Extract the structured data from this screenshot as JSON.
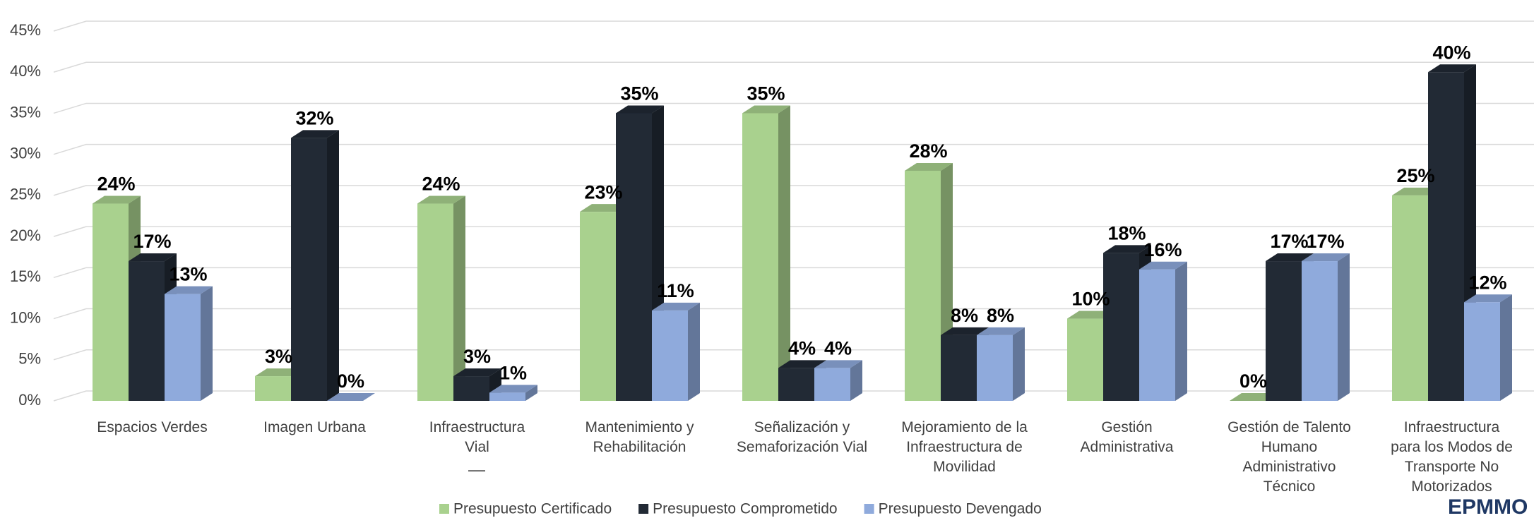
{
  "chart_data": {
    "type": "bar3d",
    "categories": [
      "Espacios Verdes",
      "Imagen Urbana",
      "Infraestructura Vial",
      "Mantenimiento y Rehabilitación",
      "Señalización y Semaforización Vial",
      "Mejoramiento de la Infraestructura de Movilidad",
      "Gestión Administrativa",
      "Gestión de Talento Humano Administrativo Técnico",
      "Infraestructura para los Modos de Transporte No Motorizados"
    ],
    "series": [
      {
        "name": "Presupuesto Certificado",
        "color": "#a9d18e",
        "values": [
          24,
          3,
          24,
          23,
          35,
          28,
          10,
          0,
          25
        ],
        "value_labels": [
          "24%",
          "3%",
          "24%",
          "23%",
          "35%",
          "28%",
          "10%",
          "0%",
          "25%"
        ]
      },
      {
        "name": "Presupuesto Comprometido",
        "color": "#222a35",
        "values": [
          17,
          32,
          3,
          35,
          4,
          8,
          18,
          17,
          40
        ],
        "value_labels": [
          "17%",
          "32%",
          "3%",
          "35%",
          "4%",
          "8%",
          "18%",
          "17%",
          "40%"
        ]
      },
      {
        "name": "Presupuesto Devengado",
        "color": "#8faadc",
        "values": [
          13,
          0,
          1,
          11,
          4,
          8,
          16,
          17,
          12
        ],
        "value_labels": [
          "13%",
          "0%",
          "1%",
          "11%",
          "4%",
          "8%",
          "16%",
          "17%",
          "12%"
        ]
      }
    ],
    "ylim": [
      0,
      45
    ],
    "yticks": [
      {
        "value": 0,
        "label": "0%"
      },
      {
        "value": 5,
        "label": "5%"
      },
      {
        "value": 10,
        "label": "10%"
      },
      {
        "value": 15,
        "label": "15%"
      },
      {
        "value": 20,
        "label": "20%"
      },
      {
        "value": 25,
        "label": "25%"
      },
      {
        "value": 30,
        "label": "30%"
      },
      {
        "value": 35,
        "label": "35%"
      },
      {
        "value": 40,
        "label": "40%"
      },
      {
        "value": 45,
        "label": "45%"
      }
    ],
    "grid": true,
    "legend": "bottom",
    "annotation": "—",
    "logo": "EPMMO"
  }
}
